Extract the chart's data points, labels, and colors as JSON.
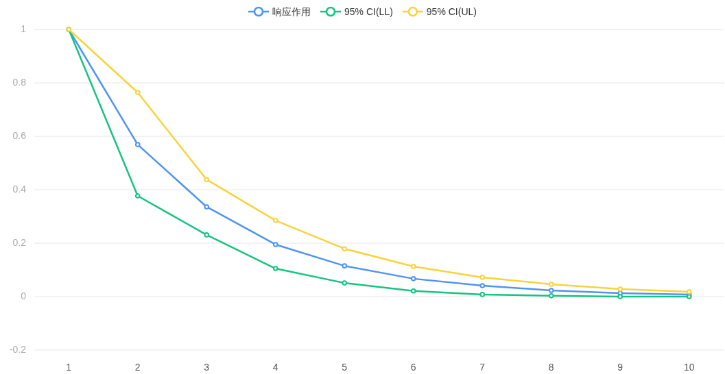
{
  "chart_data": {
    "type": "line",
    "categories": [
      "1",
      "2",
      "3",
      "4",
      "5",
      "6",
      "7",
      "8",
      "9",
      "10"
    ],
    "series": [
      {
        "name": "响应作用",
        "color": "#4e94f5",
        "values": [
          1.0,
          0.569,
          0.336,
          0.195,
          0.115,
          0.067,
          0.041,
          0.023,
          0.013,
          0.008
        ]
      },
      {
        "name": "95% CI(LL)",
        "color": "#14c47f",
        "values": [
          1.0,
          0.377,
          0.231,
          0.105,
          0.051,
          0.021,
          0.008,
          0.003,
          0.0,
          0.0
        ]
      },
      {
        "name": "95% CI(UL)",
        "color": "#f9d33a",
        "values": [
          1.0,
          0.764,
          0.438,
          0.285,
          0.179,
          0.113,
          0.072,
          0.046,
          0.028,
          0.018
        ]
      }
    ],
    "ylim": [
      -0.2,
      1
    ],
    "yticks": [
      -0.2,
      0,
      0.2,
      0.4,
      0.6,
      0.8,
      1
    ],
    "grid": "y",
    "legend": "top",
    "marker": "circle",
    "line_style": "solid"
  }
}
